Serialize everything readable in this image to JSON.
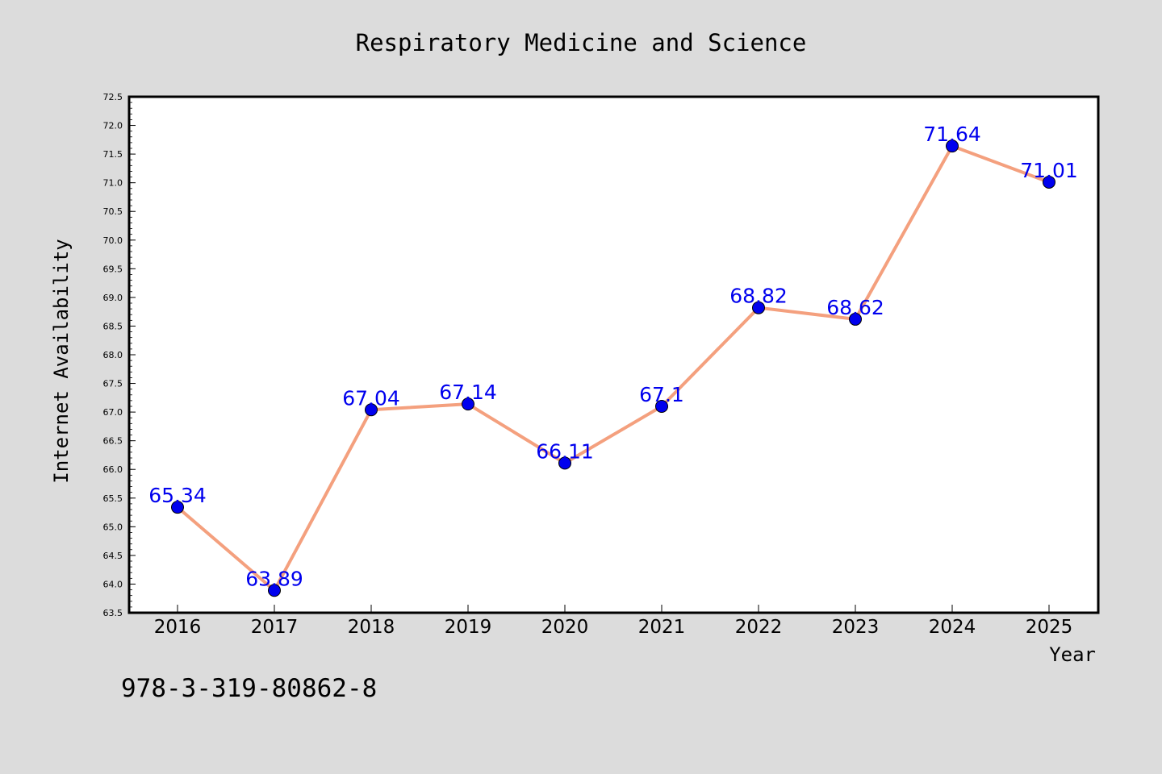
{
  "chart_data": {
    "type": "line",
    "title": "Respiratory Medicine and Science",
    "xlabel": "Year",
    "ylabel": "Internet Availability",
    "x": [
      "2016",
      "2017",
      "2018",
      "2019",
      "2020",
      "2021",
      "2022",
      "2023",
      "2024",
      "2025"
    ],
    "series": [
      {
        "values": [
          65.34,
          63.89,
          67.04,
          67.14,
          66.11,
          67.1,
          68.82,
          68.62,
          71.64,
          71.01
        ],
        "labels": [
          "65.34",
          "63.89",
          "67.04",
          "67.14",
          "66.11",
          "67.1",
          "68.82",
          "68.62",
          "71.64",
          "71.01"
        ],
        "line_color": "#f4a07e",
        "marker_color": "#0000ee",
        "label_color": "#0000ee"
      }
    ],
    "ylim": [
      63.5,
      72.5
    ],
    "yticks": [
      "63.5",
      "64.0",
      "64.5",
      "65.0",
      "65.5",
      "66.0",
      "66.5",
      "67.0",
      "67.5",
      "68.0",
      "68.5",
      "69.0",
      "69.5",
      "70.0",
      "70.5",
      "71.0",
      "71.5",
      "72.0",
      "72.5"
    ],
    "grid": false,
    "legend": "none"
  },
  "caption": "978-3-319-80862-8"
}
